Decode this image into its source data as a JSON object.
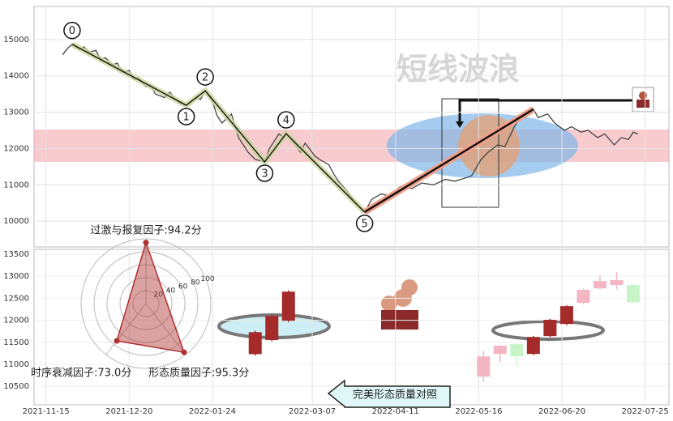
{
  "chart_data": [
    {
      "type": "line",
      "watermark": "短线波浪",
      "x": [
        "2021-11-22",
        "2021-11-24",
        "2021-11-26",
        "2021-11-29",
        "2021-12-01",
        "2021-12-03",
        "2021-12-06",
        "2021-12-08",
        "2021-12-10",
        "2021-12-13",
        "2021-12-15",
        "2021-12-17",
        "2021-12-20",
        "2021-12-22",
        "2021-12-24",
        "2021-12-27",
        "2021-12-29",
        "2021-12-31",
        "2022-01-04",
        "2022-01-06",
        "2022-01-10",
        "2022-01-13",
        "2022-01-17",
        "2022-01-19",
        "2022-01-21",
        "2022-01-24",
        "2022-01-26",
        "2022-01-28",
        "2022-02-01",
        "2022-02-04",
        "2022-02-08",
        "2022-02-11",
        "2022-02-15",
        "2022-02-17",
        "2022-02-21",
        "2022-02-23",
        "2022-02-24",
        "2022-02-28",
        "2022-03-02",
        "2022-03-04",
        "2022-03-08",
        "2022-03-10",
        "2022-03-14",
        "2022-03-16",
        "2022-03-18",
        "2022-03-22",
        "2022-03-25",
        "2022-03-29",
        "2022-04-01",
        "2022-04-05",
        "2022-04-08",
        "2022-04-13",
        "2022-04-18",
        "2022-04-22",
        "2022-04-27",
        "2022-05-02",
        "2022-05-06",
        "2022-05-11",
        "2022-05-13",
        "2022-05-17",
        "2022-05-20",
        "2022-05-24",
        "2022-05-27",
        "2022-05-31",
        "2022-06-03",
        "2022-06-08",
        "2022-06-10",
        "2022-06-14",
        "2022-06-17",
        "2022-06-21",
        "2022-06-24",
        "2022-06-28",
        "2022-07-01",
        "2022-07-05",
        "2022-07-08",
        "2022-07-12",
        "2022-07-15",
        "2022-07-18",
        "2022-07-20",
        "2022-07-22"
      ],
      "values": [
        14580,
        14750,
        14870,
        14720,
        14800,
        14650,
        14700,
        14450,
        14500,
        14300,
        14350,
        14100,
        14150,
        13900,
        13950,
        13700,
        13750,
        13500,
        13400,
        13550,
        13250,
        13190,
        13400,
        13350,
        13590,
        13300,
        12900,
        12700,
        12950,
        12300,
        11900,
        11700,
        11630,
        12000,
        12400,
        12300,
        12410,
        12100,
        11900,
        12150,
        11800,
        11700,
        11550,
        11300,
        11100,
        10800,
        10500,
        10250,
        10600,
        10750,
        10700,
        10950,
        10900,
        11050,
        11000,
        11150,
        11100,
        11200,
        11250,
        11700,
        11900,
        12100,
        12050,
        12600,
        12900,
        13080,
        12850,
        12950,
        12700,
        12500,
        12600,
        12450,
        12500,
        12300,
        12400,
        12100,
        12300,
        12250,
        12450,
        12400
      ],
      "color": "#444444",
      "waves": {
        "labels": [
          "0",
          "1",
          "2",
          "3",
          "4",
          "5"
        ],
        "x": [
          "2021-11-26",
          "2022-01-13",
          "2022-01-21",
          "2022-02-15",
          "2022-02-24",
          "2022-03-29"
        ],
        "values": [
          14870,
          13190,
          13590,
          11630,
          12410,
          10250
        ]
      },
      "trend": {
        "x": [
          "2022-03-29",
          "2022-06-08"
        ],
        "values": [
          10250,
          13080
        ],
        "color": "#c0392b"
      },
      "xlim": [
        "2021-11-10",
        "2022-08-04"
      ],
      "ylim": [
        9290,
        15910
      ],
      "yticks": [
        10000,
        11000,
        12000,
        13000,
        14000,
        15000
      ],
      "grid": true
    },
    {
      "type": "candlestick",
      "x": [
        "2022-02-11",
        "2022-02-18",
        "2022-02-25",
        "2022-05-18",
        "2022-05-25",
        "2022-06-01",
        "2022-06-08",
        "2022-06-15",
        "2022-06-22",
        "2022-06-29",
        "2022-07-06",
        "2022-07-13",
        "2022-07-20"
      ],
      "open": [
        11730,
        12100,
        12650,
        11180,
        11420,
        11180,
        11620,
        12010,
        12320,
        12690,
        12890,
        12910,
        12410
      ],
      "close": [
        11230,
        11550,
        11990,
        10720,
        11235,
        11456,
        11235,
        11640,
        11915,
        12395,
        12725,
        12800,
        12800
      ],
      "high": [
        11760,
        12130,
        12680,
        11300,
        11440,
        11480,
        11640,
        12030,
        12340,
        12720,
        13020,
        13090,
        12830
      ],
      "low": [
        11200,
        11520,
        11960,
        10600,
        11050,
        10960,
        11210,
        11620,
        11890,
        12360,
        12700,
        12700,
        12380
      ],
      "colors": [
        "#a52a2a",
        "#a52a2a",
        "#a52a2a",
        "#f4b6c2",
        "#f4b6c2",
        "#c8f5c8",
        "#a52a2a",
        "#a52a2a",
        "#a52a2a",
        "#f4b6c2",
        "#f4b6c2",
        "#f4b6c2",
        "#c8f5c8"
      ],
      "xlim": [
        "2021-11-10",
        "2022-08-04"
      ],
      "xticks": [
        "2021-11-15",
        "2021-12-20",
        "2022-01-24",
        "2022-03-07",
        "2022-04-11",
        "2022-05-16",
        "2022-06-20",
        "2022-07-25"
      ],
      "ylim": [
        10080,
        13610
      ],
      "yticks": [
        10500,
        11000,
        11500,
        12000,
        12500,
        13000,
        13500
      ],
      "grid": true
    },
    {
      "type": "radar",
      "labels": [
        "过激与报复因子:94.2分",
        "时序衰减因子:73.0分",
        "形态质量因子:95.3分"
      ],
      "values": [
        94.2,
        73.0,
        95.3
      ],
      "rlim": [
        0,
        100
      ],
      "rticks": [
        20,
        40,
        60,
        80,
        100
      ],
      "color": "#b03030"
    }
  ],
  "button": {
    "label": "完美形态质量对照"
  }
}
